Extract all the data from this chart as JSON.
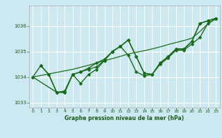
{
  "background_color": "#cce8f0",
  "grid_color": "#ffffff",
  "line_color": "#1a6b1a",
  "marker_color": "#1a6b1a",
  "xlabel": "Graphe pression niveau de la mer (hPa)",
  "xlabel_color": "#1a5c1a",
  "ylabel_color": "#1a5c1a",
  "xlim": [
    -0.5,
    23.5
  ],
  "ylim": [
    1032.8,
    1036.8
  ],
  "yticks": [
    1033,
    1034,
    1035,
    1036
  ],
  "xticks": [
    0,
    1,
    2,
    3,
    4,
    5,
    6,
    7,
    8,
    9,
    10,
    11,
    12,
    13,
    14,
    15,
    16,
    17,
    18,
    19,
    20,
    21,
    22,
    23
  ],
  "series": [
    {
      "x": [
        0,
        1,
        2,
        3,
        4,
        5,
        6,
        7,
        8,
        9,
        10,
        11,
        12,
        13,
        14,
        15,
        16,
        17,
        18,
        19,
        20,
        21,
        22,
        23
      ],
      "y": [
        1034.0,
        1034.45,
        1034.1,
        1033.4,
        1033.4,
        1034.1,
        1033.75,
        1034.1,
        1034.3,
        1034.65,
        1035.0,
        1035.2,
        1035.45,
        1034.8,
        1034.15,
        1034.1,
        1034.55,
        1034.8,
        1035.1,
        1035.1,
        1035.4,
        1036.1,
        1036.2,
        1036.3
      ],
      "marker": "D",
      "linewidth": 1.0,
      "markersize": 2.5,
      "has_marker": true
    },
    {
      "x": [
        0,
        1,
        2,
        3,
        4,
        5,
        6,
        7,
        8,
        9,
        10,
        11,
        12,
        13,
        14,
        15,
        16,
        17,
        18,
        19,
        20,
        21,
        22,
        23
      ],
      "y": [
        1034.0,
        1034.06,
        1034.12,
        1034.18,
        1034.24,
        1034.3,
        1034.38,
        1034.46,
        1034.55,
        1034.64,
        1034.72,
        1034.81,
        1034.9,
        1034.97,
        1035.03,
        1035.1,
        1035.18,
        1035.27,
        1035.35,
        1035.43,
        1035.52,
        1035.78,
        1036.08,
        1036.28
      ],
      "marker": null,
      "linewidth": 0.9,
      "markersize": 0,
      "has_marker": false
    },
    {
      "x": [
        0,
        3,
        4,
        5,
        6,
        7,
        8,
        9,
        10,
        11,
        12,
        13,
        14,
        15,
        16,
        17,
        18,
        19,
        20,
        21,
        22,
        23
      ],
      "y": [
        1034.0,
        1033.4,
        1033.4,
        1034.1,
        1034.2,
        1034.3,
        1034.4,
        1034.65,
        1035.0,
        1035.2,
        1034.85,
        1034.2,
        1034.05,
        1034.1,
        1034.5,
        1034.75,
        1035.05,
        1035.05,
        1035.3,
        1035.55,
        1036.1,
        1036.28
      ],
      "marker": "D",
      "linewidth": 1.0,
      "markersize": 2.5,
      "has_marker": true
    },
    {
      "x": [
        1,
        2,
        3,
        4,
        5,
        6,
        7,
        8,
        9,
        10,
        11,
        12,
        13,
        14,
        15,
        16,
        17,
        18,
        19,
        20,
        21,
        22,
        23
      ],
      "y": [
        1034.45,
        1034.1,
        1033.4,
        1033.45,
        1034.1,
        1034.2,
        1034.35,
        1034.55,
        1034.7,
        1035.0,
        1035.2,
        1035.45,
        1034.8,
        1034.15,
        1034.1,
        1034.55,
        1034.8,
        1035.1,
        1035.1,
        1035.4,
        1036.1,
        1036.2,
        1036.3
      ],
      "marker": "D",
      "linewidth": 1.0,
      "markersize": 2.5,
      "has_marker": true
    }
  ]
}
